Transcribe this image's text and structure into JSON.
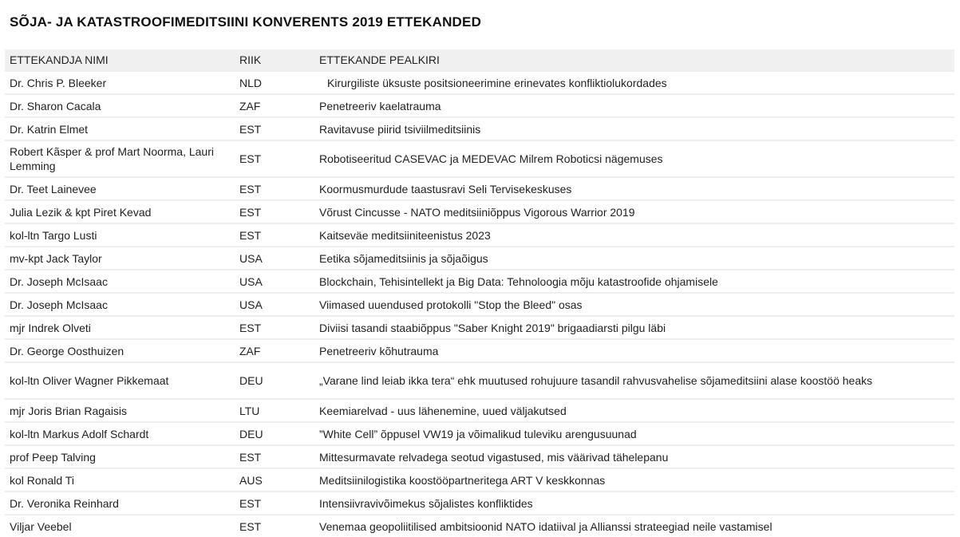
{
  "title": "SÕJA- JA KATASTROOFIMEDITSIINI KONVERENTS 2019 ETTEKANDED",
  "columns": [
    "ETTEKANDJA NIMI",
    "RIIK",
    "ETTEKANDE PEALKIRI"
  ],
  "rows": [
    {
      "name": "Dr. Chris P. Bleeker",
      "country": "NLD",
      "talk": "Kirurgiliste üksuste positsioneerimine erinevates konfliktiolukordades"
    },
    {
      "name": "Dr. Sharon Cacala",
      "country": "ZAF",
      "talk": "Penetreeriv kaelatrauma"
    },
    {
      "name": "Dr. Katrin Elmet",
      "country": "EST",
      "talk": "Ravitavuse piirid tsiviilmeditsiinis"
    },
    {
      "name": "Robert Kãsper & prof Mart Noorma, Lauri Lemming",
      "country": "EST",
      "talk": "Robotiseeritud CASEVAC ja MEDEVAC Milrem Roboticsi nägemuses"
    },
    {
      "name": "Dr. Teet Lainevee",
      "country": "EST",
      "talk": "Koormusmurdude taastusravi Seli Tervisekeskuses"
    },
    {
      "name": "Julia Lezik & kpt Piret Kevad",
      "country": "EST",
      "talk": "Võrust Cincusse - NATO meditsiiniõppus Vigorous Warrior 2019"
    },
    {
      "name": "kol-ltn Targo Lusti",
      "country": "EST",
      "talk": "Kaitseväe meditsiiniteenistus 2023"
    },
    {
      "name": "mv-kpt Jack Taylor",
      "country": "USA",
      "talk": "Eetika sõjameditsiinis ja sõjaõigus"
    },
    {
      "name": "Dr. Joseph McIsaac",
      "country": "USA",
      "talk": "Blockchain, Tehisintellekt ja Big Data: Tehnoloogia mõju katastroofide ohjamisele"
    },
    {
      "name": "Dr. Joseph McIsaac",
      "country": "USA",
      "talk": "Viimased uuendused protokolli \"Stop the Bleed\" osas"
    },
    {
      "name": "mjr Indrek Olveti",
      "country": "EST",
      "talk": "Diviisi tasandi staabiõppus \"Saber Knight 2019\" brigaadiarsti pilgu läbi"
    },
    {
      "name": "Dr. George Oosthuizen",
      "country": "ZAF",
      "talk": "Penetreeriv kõhutrauma"
    },
    {
      "name": "kol-ltn  Oliver Wagner Pikkemaat",
      "country": "DEU",
      "talk": "„Varane lind leiab ikka tera“ ehk muutused rohujuure tasandil rahvusvahelise sõjameditsiini alase koostöö heaks"
    },
    {
      "name": "mjr Joris Brian Ragaisis",
      "country": "LTU",
      "talk": "Keemiarelvad - uus lähenemine, uued väljakutsed"
    },
    {
      "name": "kol-ltn Markus Adolf Schardt",
      "country": "DEU",
      "talk": "”White Cell” õppusel VW19 ja võimalikud tuleviku arengusuunad"
    },
    {
      "name": "prof Peep Talving",
      "country": "EST",
      "talk": "Mittesurmavate relvadega seotud vigastused, mis väärivad tähelepanu"
    },
    {
      "name": "kol Ronald Ti",
      "country": "AUS",
      "talk": "Meditsiinilogistika koostööpartneritega ART V keskkonnas"
    },
    {
      "name": "Dr. Veronika Reinhard",
      "country": "EST",
      "talk": "Intensiivravivõimekus sõjalistes konfliktides"
    },
    {
      "name": "Viljar Veebel",
      "country": "EST",
      "talk": "Venemaa geopoliitilised ambitsioonid NATO idatiival ja Allianssi strateegiad neile vastamisel"
    }
  ]
}
